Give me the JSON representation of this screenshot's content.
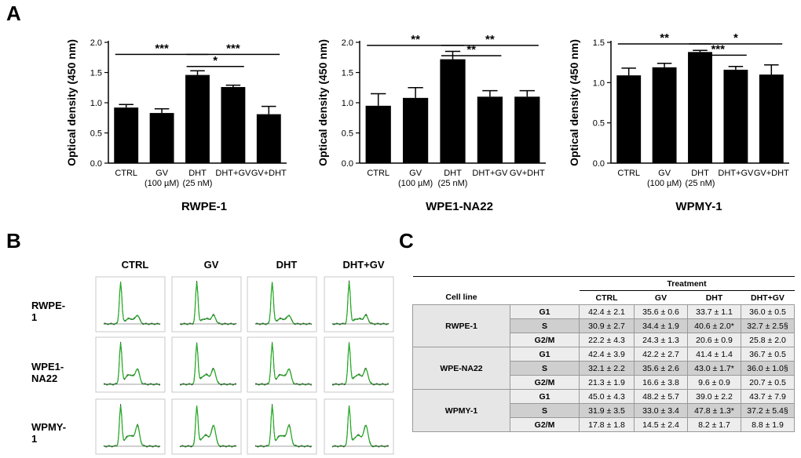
{
  "panel_labels": {
    "a": "A",
    "b": "B",
    "c": "C"
  },
  "chart_data": [
    {
      "type": "bar",
      "title": "RWPE-1",
      "ylabel": "Optical density (450 nm)",
      "categories": [
        "CTRL",
        "GV\n(100 µM)",
        "DHT\n(25 nM)",
        "DHT+GV",
        "GV+DHT"
      ],
      "values": [
        0.92,
        0.83,
        1.46,
        1.26,
        0.81
      ],
      "errors": [
        0.05,
        0.07,
        0.07,
        0.03,
        0.13
      ],
      "ylim": [
        0,
        2.0
      ],
      "yticks": [
        "0.0",
        "0.5",
        "1.0",
        "1.5",
        "2.0"
      ],
      "significance": [
        {
          "from": 0,
          "to": 2,
          "y": 1.8,
          "label": "***"
        },
        {
          "from": 2,
          "to": 4,
          "y": 1.8,
          "label": "***"
        },
        {
          "from": 2,
          "to": 3,
          "y": 1.6,
          "label": "*"
        }
      ]
    },
    {
      "type": "bar",
      "title": "WPE1-NA22",
      "ylabel": "Optical density (450 nm)",
      "categories": [
        "CTRL",
        "GV\n(100 µM)",
        "DHT\n(25 nM)",
        "DHT+GV",
        "GV+DHT"
      ],
      "values": [
        0.95,
        1.08,
        1.72,
        1.1,
        1.1
      ],
      "errors": [
        0.2,
        0.17,
        0.13,
        0.1,
        0.1
      ],
      "ylim": [
        0,
        2.0
      ],
      "yticks": [
        "0.0",
        "0.5",
        "1.0",
        "1.5",
        "2.0"
      ],
      "significance": [
        {
          "from": 0,
          "to": 2,
          "y": 1.95,
          "label": "**"
        },
        {
          "from": 2,
          "to": 4,
          "y": 1.95,
          "label": "**"
        },
        {
          "from": 2,
          "to": 3,
          "y": 1.78,
          "label": "**"
        }
      ]
    },
    {
      "type": "bar",
      "title": "WPMY-1",
      "ylabel": "Optical density (450 nm)",
      "categories": [
        "CTRL",
        "GV\n(100 µM)",
        "DHT\n(25 nM)",
        "DHT+GV",
        "GV+DHT"
      ],
      "values": [
        1.09,
        1.19,
        1.38,
        1.16,
        1.1
      ],
      "errors": [
        0.09,
        0.05,
        0.02,
        0.04,
        0.12
      ],
      "ylim": [
        0,
        1.5
      ],
      "yticks": [
        "0.0",
        "0.5",
        "1.0",
        "1.5"
      ],
      "significance": [
        {
          "from": 0,
          "to": 2,
          "y": 1.48,
          "label": "**"
        },
        {
          "from": 2,
          "to": 4,
          "y": 1.48,
          "label": "*"
        },
        {
          "from": 2,
          "to": 3,
          "y": 1.34,
          "label": "***"
        }
      ]
    }
  ],
  "flow": {
    "columns": [
      "CTRL",
      "GV",
      "DHT",
      "DHT+GV"
    ],
    "rows": [
      "RWPE-1",
      "WPE1-NA22",
      "WPMY-1"
    ]
  },
  "table": {
    "treatment_label": "Treatment",
    "cell_line_label": "Cell line",
    "treatments": [
      "CTRL",
      "GV",
      "DHT",
      "DHT+GV"
    ],
    "groups": [
      {
        "name": "RWPE-1",
        "rows": [
          {
            "phase": "G1",
            "values": [
              "42.4 ± 2.1",
              "35.6 ± 0.6",
              "33.7 ± 1.1",
              "36.0 ± 0.5"
            ]
          },
          {
            "phase": "S",
            "values": [
              "30.9 ± 2.7",
              "34.4 ± 1.9",
              "40.6 ± 2.0*",
              "32.7 ± 2.5§"
            ]
          },
          {
            "phase": "G2/M",
            "values": [
              "22.2 ± 4.3",
              "24.3 ± 1.3",
              "20.6 ± 0.9",
              "25.8 ± 2.0"
            ]
          }
        ]
      },
      {
        "name": "WPE-NA22",
        "rows": [
          {
            "phase": "G1",
            "values": [
              "42.4 ± 3.9",
              "42.2 ± 2.7",
              "41.4 ± 1.4",
              "36.7 ± 0.5"
            ]
          },
          {
            "phase": "S",
            "values": [
              "32.1 ± 2.2",
              "35.6 ± 2.6",
              "43.0 ± 1.7*",
              "36.0 ± 1.0§"
            ]
          },
          {
            "phase": "G2/M",
            "values": [
              "21.3 ± 1.9",
              "16.6 ± 3.8",
              "9.6 ± 0.9",
              "20.7 ± 0.5"
            ]
          }
        ]
      },
      {
        "name": "WPMY-1",
        "rows": [
          {
            "phase": "G1",
            "values": [
              "45.0 ± 4.3",
              "48.2 ± 5.7",
              "39.0 ± 2.2",
              "43.7 ± 7.9"
            ]
          },
          {
            "phase": "S",
            "values": [
              "31.9 ± 3.5",
              "33.0 ± 3.4",
              "47.8 ± 1.3*",
              "37.2 ± 5.4§"
            ]
          },
          {
            "phase": "G2/M",
            "values": [
              "17.8 ± 1.8",
              "14.5 ± 2.4",
              "8.2 ± 1.7",
              "8.8 ± 1.9"
            ]
          }
        ]
      }
    ]
  }
}
